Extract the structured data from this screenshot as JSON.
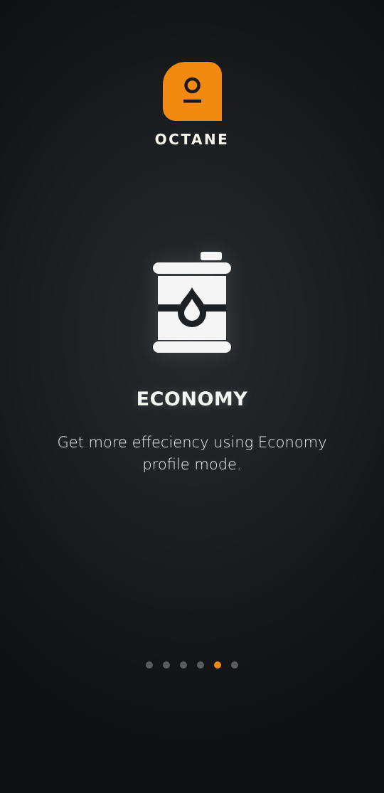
{
  "brand": {
    "name": "OCTANE",
    "accent_color": "#f28a12"
  },
  "slide": {
    "icon": "oil-barrel-icon",
    "title": "ECONOMY",
    "description": "Get more effeciency using Economy profile mode."
  },
  "pagination": {
    "total": 6,
    "active_index": 4
  }
}
